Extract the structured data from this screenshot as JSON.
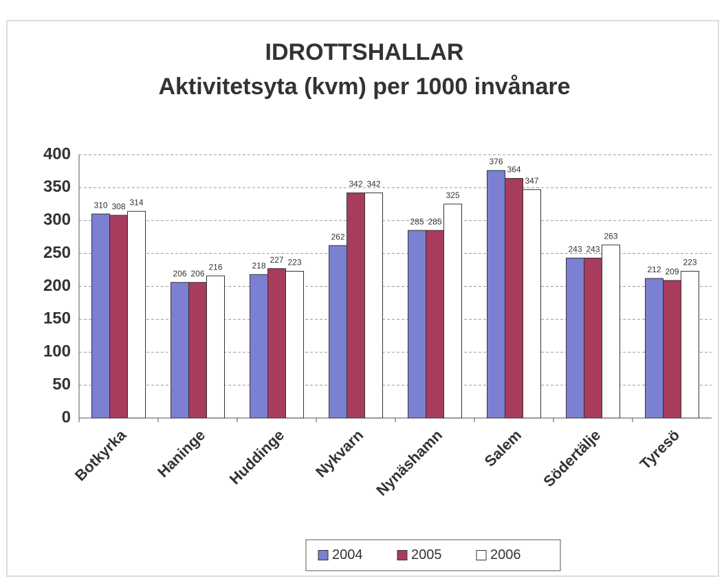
{
  "chart_data": {
    "type": "bar",
    "title": "IDROTTSHALLAR",
    "subtitle": "Aktivitetsyta (kvm) per 1000 invånare",
    "categories": [
      "Botkyrka",
      "Haninge",
      "Huddinge",
      "Nykvarn",
      "Nynäshamn",
      "Salem",
      "Södertälje",
      "Tyresö"
    ],
    "series": [
      {
        "name": "2004",
        "color": "#7b80d2",
        "values": [
          310,
          206,
          218,
          262,
          285,
          376,
          243,
          212
        ]
      },
      {
        "name": "2005",
        "color": "#a83c5c",
        "values": [
          308,
          206,
          227,
          342,
          285,
          364,
          243,
          209
        ]
      },
      {
        "name": "2006",
        "color": "#ffffff",
        "values": [
          314,
          216,
          223,
          342,
          325,
          347,
          263,
          223
        ]
      }
    ],
    "ylim": [
      0,
      400
    ],
    "yticks": [
      0,
      50,
      100,
      150,
      200,
      250,
      300,
      350,
      400
    ],
    "grid": true,
    "legend": "bottom"
  }
}
